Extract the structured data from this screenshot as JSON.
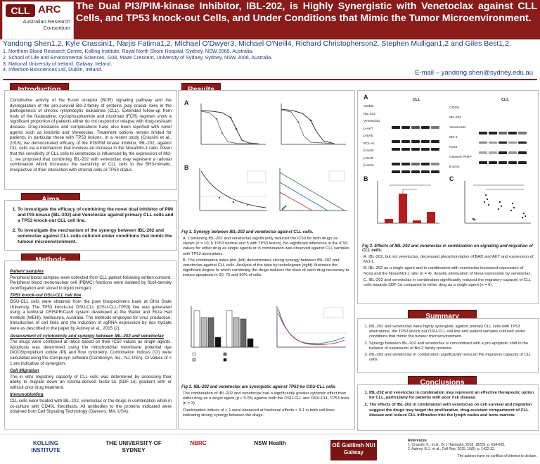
{
  "header": {
    "logo_cll": "CLL",
    "logo_arc": "ARC",
    "logo_subtitle": "Australian Research Consortium",
    "title": "The Dual PI3/PIM-kinase Inhibitor, IBL-202, is Highly Synergistic with Venetoclax against CLL Cells, and TP53 knock-out Cells, and Under Conditions that Mimic the Tumor Microenvironment.",
    "authors": "Yandong Shen1,2, Kyle Crassini1, Narjis Fatima1,2, Michael O'Dwyer3, Michael O'Neill4, Richard Christopherson2, Stephen Mulligan1,2 and Giles Best1,2.",
    "affiliations": [
      "1. Northern Blood Research Centre, Kolling Institute, Royal North Shore Hospital, Sydney, NSW 2065, Australia.",
      "2. School of Life and Environmental Sciences, G08, Maze Crescent, University of Sydney, Sydney, NSW 2006, Australia.",
      "3. National University of Ireland, Galway, Ireland.",
      "4. Inflection Biosciences Ltd, Dublin, Ireland."
    ],
    "email": "E-mail – yandong.shen@sydney.edu.au"
  },
  "introduction": {
    "heading": "Introduction",
    "text": "Constitutive activity of the B-cell receptor (BCR) signaling pathway and the dysregulation of the pro-survival Bcl-2-family of proteins play crucial roles in the pathogenesis of chronic lymphocytic leukaemia (CLL). Extended follow-up from trials of the fludarabine, cyclophosphamide and rituximab (FCR) regimen show a significant proportion of patients either do not respond or relapse with drug-resistant disease. Drug-resistance and complications have also been reported with novel agents such as ibrutinib and Venetoclax. Treatment options remain limited for patients, in particular those with TP53 lesions. In a recent study (Crassini et al., 2018), we demonstrated efficacy of the PI3/PIM kinase inhibitor, IBL-202, against CLL cells via a mechanism that involves an increase in the Noxa/Mcl-1 ratio. Given that the sensitivity of CLL cells to venetoclax is influenced by the expression of Mcl-1, we proposed that combining IBL-202 with venetoclax may represent a rational combination which increases the sensitivity of CLL cells to the BH3-mimetic, irrespective of their interaction with stromal cells or TP53 status."
  },
  "aims": {
    "heading": "Aims",
    "items": [
      "To investigate the efficacy of combining the novel dual inhibitor of PIM and PI3-kinase (IBL-202) and Venetoclax against primary CLL cells and a TP53 knock-out CLL cell line.",
      "To investigate the mechanism of the synergy between IBL-202 and venetoclax against CLL cells cultured under conditions that mimic the tumour microenvironment."
    ]
  },
  "methods": {
    "heading": "Methods",
    "sections": [
      {
        "title": "Patient samples",
        "text": "Peripheral blood samples were collected from CLL patient following written consent. Peripheral blood mononuclear cell (PBMC) fractions were isolated by ficoll-density centrifugation and stored in liquid nitrogen."
      },
      {
        "title": "TP53 knock-out OSU-CLL cell line",
        "text": "OSU-CLL cells were obtained from the pure biospecimens bank at Ohio State University. The TP53 knock-out OSU-CLL (OSU-CLL-TP53) line was generated using a lentiviral CRISPR/Cas9 system developed at the Walter and Eliza Hall Institute (WEHI), Melbourne, Australia. The methods employed for virus production, transduction of cell lines and the induction of sgRNA expression by dox hyclate were as described in the paper by Aubrey et al., 2015 (2)."
      },
      {
        "title": "Assessment of cytotoxicity and synergy between IBL-202 and venetoclax",
        "text": "The drugs were combined at ratios based on their IC50 values as single agents. Apoptosis was determined using the mitochondrial membrane potential dye DiOC6/propidium iodide (PI) and flow cytometry. Combination indices (CI) were calculated using the Compusyn software (ComboSyn, Inc., NJ, USA). CI values of < 1 are indicative of synergism."
      },
      {
        "title": "Cell Migration",
        "text": "The in vitro migratory capacity of CLL cells was determined by assessing their ability to migrate down an stroma-derived factor-1α (SDF-1α) gradient with or without prior drug treatment."
      },
      {
        "title": "Immunoblotting",
        "text": "CLL cells were treated with IBL-202, venetoclax or the drugs in combination while in co-culture with CD40L fibroblasts. All antibodies to the proteins indicated were obtained from Cell Signaling Technology (Danvers, MA, USA)."
      }
    ]
  },
  "results": {
    "heading": "Results",
    "fig1": {
      "caption": "Fig 1. Synergy between IBL-202 and venetoclax against CLL cells.",
      "points": [
        "A. Combining IBL-202 and venetoclax significantly reduced the IC50 for both drugs as shown (n = 10, 5 TP53 normal and 5 with TP53 lesion). No significant difference in the IC50 values for either drug as single agents or in combination was observed against CLL samples with TP53 aberrations.",
        "B. The combination index plot (left) demonstrates strong synergy between IBL-202 and venetoclax against CLL cells. Analysis of the data by isobologram (right) illustrates the significant degree to which combining the drugs reduces the dose of each drug necessary to induce apoptosis in 50, 75 and 90% of cells."
      ]
    },
    "fig2": {
      "caption": "Fig 2. IBL-202 and venetoclax are synergistic against TP53-ko OSU-CLL cells",
      "points": [
        "The combination of IBL-202 and venetoclax had a significantly greater cytotoxic effect than either drug as a single agent (p < 0.05) against both the OSU-CLL and OSU-CLL-TP53 lines (n = 3).",
        "Combination indices of < 1 were observed at fractional effects > 0.1 in both cell lines indicating strong synergy between the drugs."
      ]
    },
    "fig3": {
      "caption": "Fig 3. Effects of IBL-202 and venetoclax in combination on signaling and migration of CLL cells.",
      "points": [
        "A. IBL-202, but not venetoclax, decreased phosphorylation of BAD and AKT and expression of Mcl-1.",
        "B. IBL-202 as a single agent and in combination with venetoclax increased expression of Noxa and the Noxa/Mcl-1 ratio (n = 4), despite attenuation of Noxa expression by venetoclax.",
        "C. IBL-202 and venetoclax in combination significantly reduced the migratory capacity of CLL cells towards SDF-1α compared to either drug as a single agent (n = 6)."
      ]
    }
  },
  "figure_labels": {
    "fig1_a": "A",
    "fig1_b": "B",
    "fig3_a": "A",
    "fig3_b": "B",
    "fig3_c": "C",
    "wb_group_left": "CLL",
    "wb_group_right": "CLL",
    "wb_rows_left": [
      "CD40L",
      "IBL-202",
      "Venetoclax",
      "p-AKT",
      "p-BAD",
      "BCL-xL",
      "β-actin",
      "p-BAD",
      "β-actin"
    ],
    "wb_rows_right": [
      "CD40L",
      "IBL-202",
      "Venetoclax",
      "Mcl-1",
      "Noxa",
      "Cleaved PARP",
      "β-actin"
    ]
  },
  "summary": {
    "heading": "Summary",
    "items": [
      "IBL-202 and venetoclax were highly synergistic against primary CLL cells with TP53 aberrations, the TP53 knock-out OSU-CLL cell line and patient samples cultured under conditions that mimic the tumour microenvironment.",
      "Synergy between IBL-202 and venetoclax is concomitant with a pro-apoptotic shift in the balance of expression of Bcl-2 family proteins.",
      "IBL-202 and venetoclax in combination significantly reduced the migratory capacity of CLL cells."
    ]
  },
  "conclusions": {
    "heading": "Conclusions",
    "items": [
      "IBL-202 and venetoclax in combination may represent an effective therapeutic option for CLL, particularly for patients with poor risk disease.",
      "The effects of IBL-202 in combination with venetoclax on cell survival and migration suggest the drugs may target the proliferative, drug-resistant compartment of CLL disease and reduce CLL infiltration into the lymph nodes and bone marrow."
    ]
  },
  "footer": {
    "logos": [
      "KOLLING INSTITUTE",
      "THE UNIVERSITY OF SYDNEY",
      "NBRC",
      "NSW Health",
      "OÉ Gaillimh NUI Galway"
    ],
    "references_title": "References",
    "references": [
      "1. Crassini, K., et al., Br J Haematol, 2018. 182(5): p. 654-669.",
      "2. Aubrey, B.J., et al., Cell Rep, 2015. 10(8): p. 1422-32."
    ],
    "disclaimer": "The authors have no conflicts of interest to declare."
  }
}
